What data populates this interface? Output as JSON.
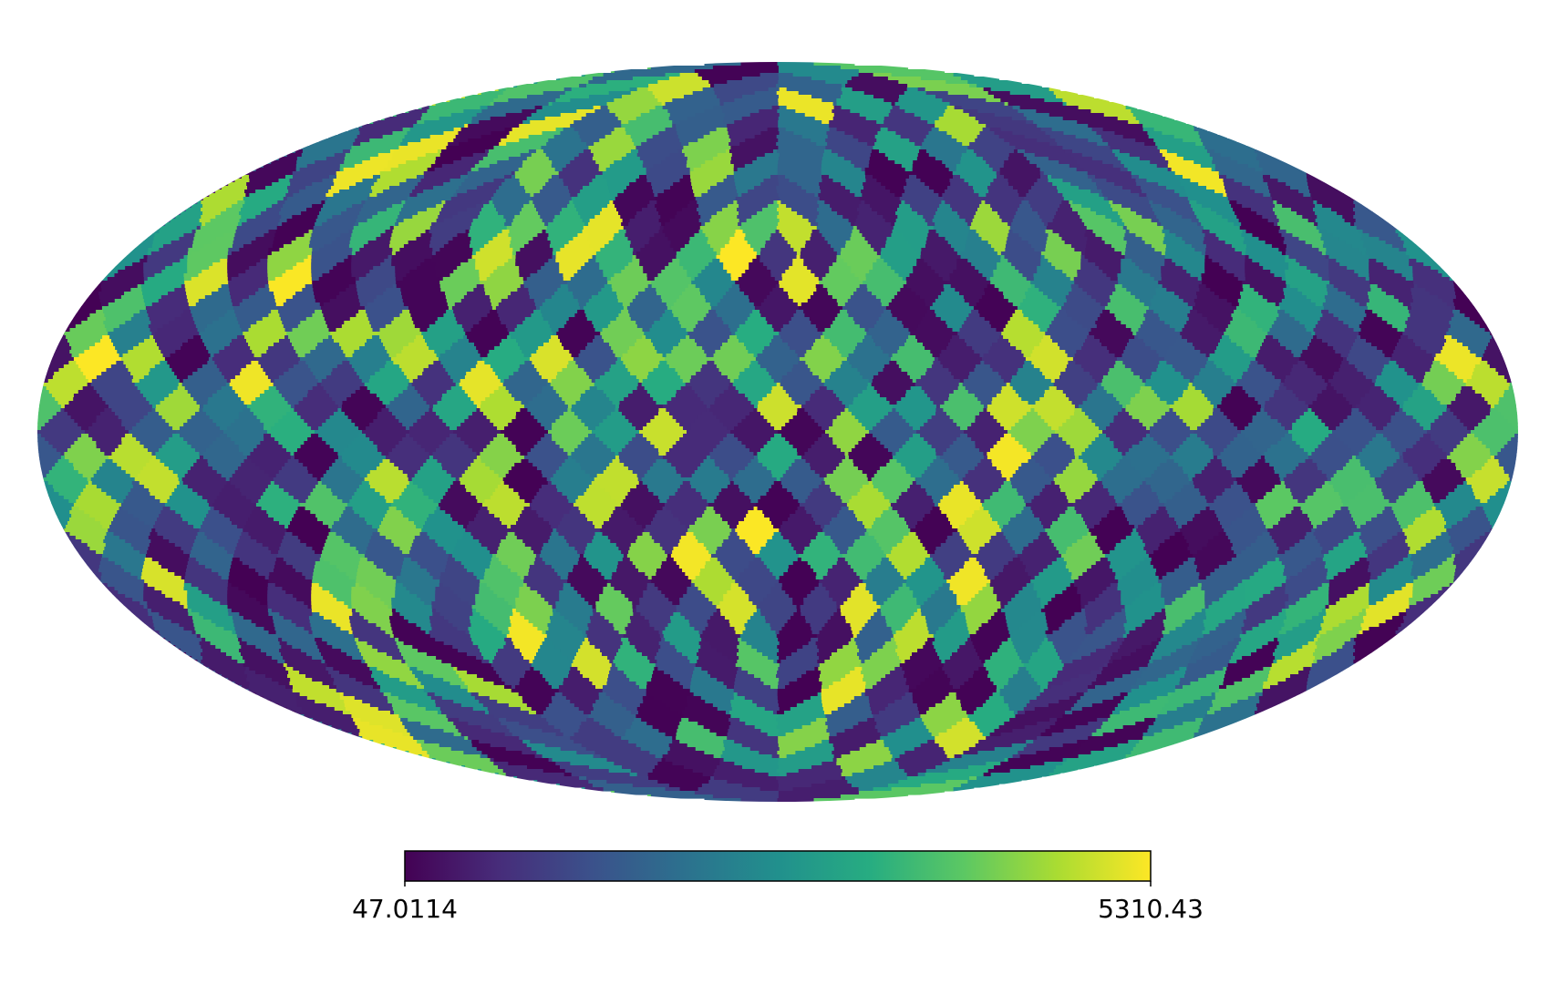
{
  "chart_data": {
    "type": "heatmap",
    "projection": "mollweide",
    "pixelization": "healpix",
    "nside": 8,
    "npix": 768,
    "colormap": "viridis",
    "grid": false,
    "min": 47.0114,
    "max": 5310.43,
    "colorbar": {
      "placement": "bottom",
      "min_label": "47.0114",
      "max_label": "5310.43"
    },
    "title": ""
  },
  "colors": {
    "background": "#ffffff",
    "colorbar_outline": "#000000"
  }
}
